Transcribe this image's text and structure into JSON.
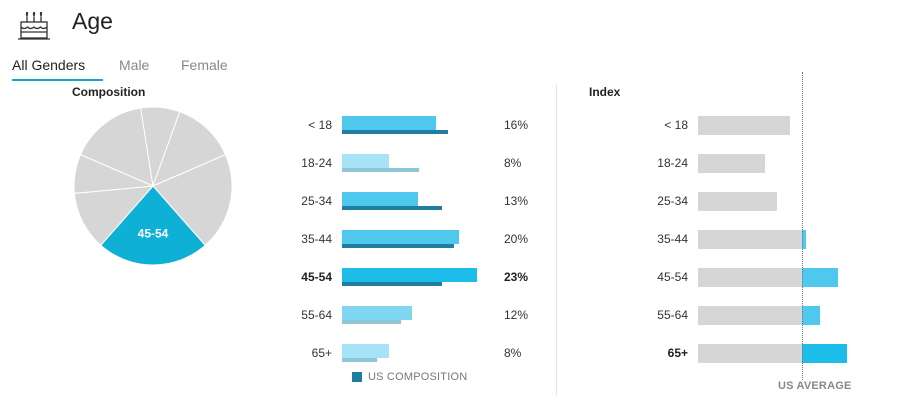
{
  "header": {
    "title": "Age",
    "icon": "cake-icon"
  },
  "tabs": [
    {
      "label": "All Genders",
      "active": true
    },
    {
      "label": "Male",
      "active": false
    },
    {
      "label": "Female",
      "active": false
    }
  ],
  "composition": {
    "label": "Composition",
    "pie_highlight_label": "45-54"
  },
  "index": {
    "label": "Index"
  },
  "legend": {
    "us_composition": "US COMPOSITION",
    "us_average": "US AVERAGE"
  },
  "colors": {
    "accent": "#1aa7c8",
    "bar_normal": "#4fc8ee",
    "bar_light": "#a6e3f6",
    "bar_highlight": "#1cbde9",
    "us_bar": "#1f7ea1",
    "us_bar_light": "#8fc7d6",
    "gray": "#d6d6d6"
  },
  "chart_data": [
    {
      "type": "pie",
      "title": "Composition",
      "categories": [
        "< 18",
        "18-24",
        "25-34",
        "35-44",
        "45-54",
        "55-64",
        "65+"
      ],
      "values": [
        16,
        8,
        13,
        20,
        23,
        12,
        8
      ],
      "highlighted": "45-54"
    },
    {
      "type": "bar",
      "orientation": "horizontal",
      "categories": [
        "< 18",
        "18-24",
        "25-34",
        "35-44",
        "45-54",
        "55-64",
        "65+"
      ],
      "series": [
        {
          "values": [
            16,
            8,
            13,
            20,
            23,
            12,
            8
          ]
        },
        {
          "name": "US COMPOSITION",
          "values": [
            18,
            13,
            17,
            19,
            17,
            10,
            6
          ]
        }
      ],
      "value_labels": [
        "16%",
        "8%",
        "13%",
        "20%",
        "23%",
        "12%",
        "8%"
      ],
      "highlighted": "45-54"
    },
    {
      "type": "bar",
      "orientation": "horizontal",
      "title": "Index",
      "categories": [
        "< 18",
        "18-24",
        "25-34",
        "35-44",
        "45-54",
        "55-64",
        "65+"
      ],
      "values": [
        88,
        64,
        76,
        104,
        132,
        116,
        140
      ],
      "baseline": 100,
      "baseline_label": "US AVERAGE",
      "highlighted": "65+"
    }
  ]
}
